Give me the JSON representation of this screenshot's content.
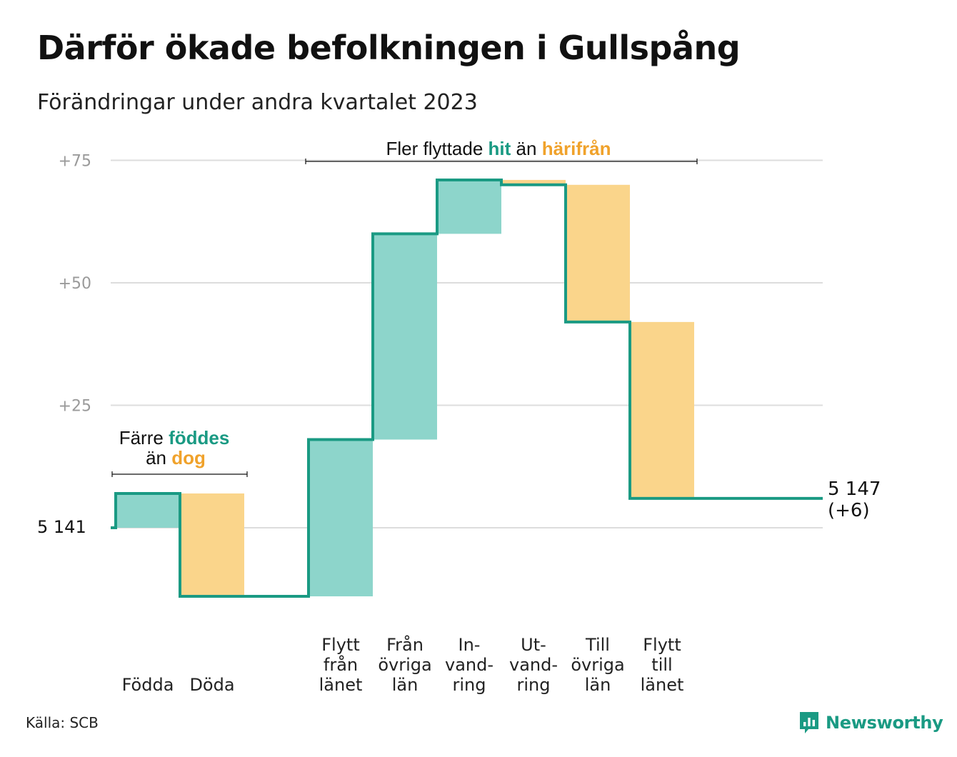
{
  "title": "Därför ökade befolkningen i Gullspång",
  "subtitle": "Förändringar under andra kvartalet 2023",
  "source": "Källa: SCB",
  "brand": "Newsworthy",
  "colors": {
    "increase": "#8dd5cb",
    "decrease": "#fad58b",
    "line": "#1a9a83",
    "accent_text": "#f0a22b",
    "grid": "#dddddd"
  },
  "chart_data": {
    "type": "waterfall",
    "start_value": 5141,
    "start_label": "5  141",
    "end_label_line1": "5 147",
    "end_label_line2": "(+6)",
    "y_ticks": [
      {
        "value": 25,
        "label": "+25"
      },
      {
        "value": 50,
        "label": "+50"
      },
      {
        "value": 75,
        "label": "+75"
      }
    ],
    "ylim": [
      -14,
      75
    ],
    "steps": [
      {
        "label_lines": [
          "Födda"
        ],
        "change": 7
      },
      {
        "label_lines": [
          "Döda"
        ],
        "change": -21
      },
      {
        "label_lines": [],
        "change": 0
      },
      {
        "label_lines": [
          "Flytt",
          "från",
          "länet"
        ],
        "change": 32
      },
      {
        "label_lines": [
          "Från",
          "övriga",
          "län"
        ],
        "change": 42
      },
      {
        "label_lines": [
          "In-",
          "vand-",
          "ring"
        ],
        "change": 11
      },
      {
        "label_lines": [
          "Ut-",
          "vand-",
          "ring"
        ],
        "change": -1
      },
      {
        "label_lines": [
          "Till",
          "övriga",
          "län"
        ],
        "change": -28
      },
      {
        "label_lines": [
          "Flytt",
          "till",
          "länet"
        ],
        "change": -36
      }
    ],
    "annotations": {
      "births": {
        "line1": "Färre",
        "highlight1": "föddes",
        "line2a": "än",
        "highlight2": "dog"
      },
      "migration": {
        "text1": "Fler flyttade",
        "highlight1": "hit",
        "text2": "än",
        "highlight2": "härifrån"
      }
    }
  }
}
